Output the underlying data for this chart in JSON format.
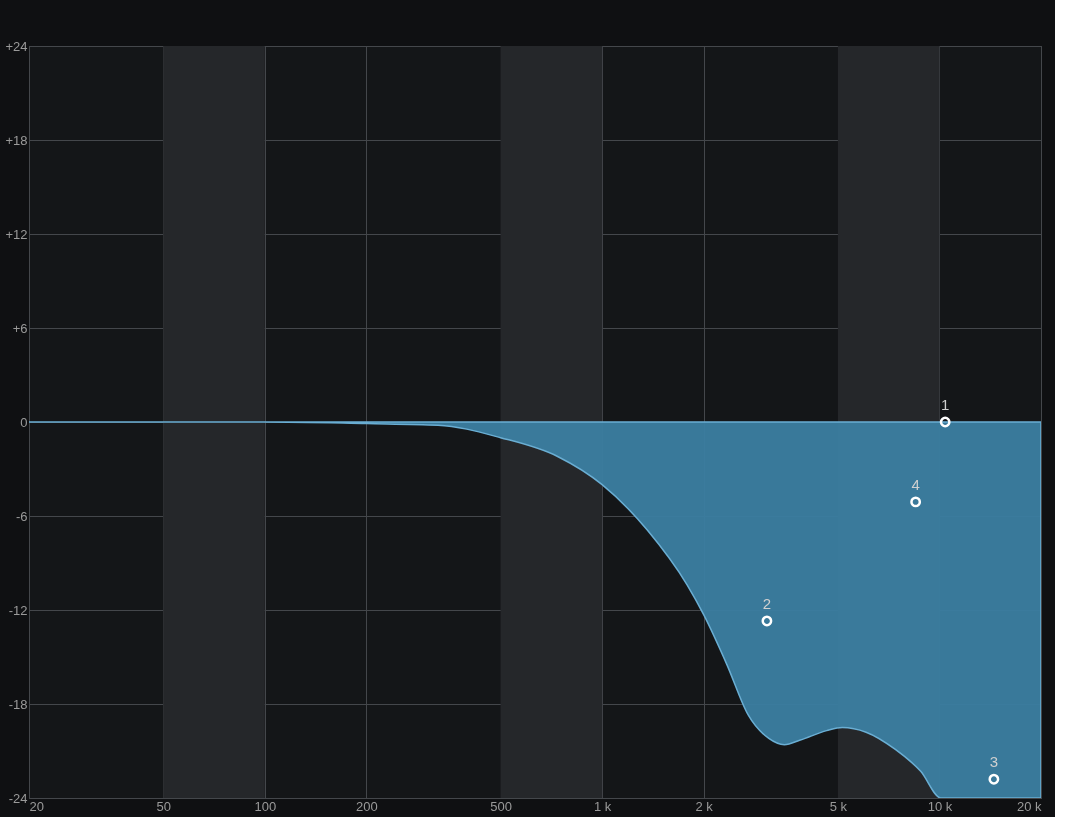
{
  "chart_data": {
    "type": "area",
    "series": [
      {
        "color": "#3b7ea1",
        "x": [
          20,
          100,
          200,
          326,
          500,
          738,
          1000,
          1361,
          1786,
          2000,
          2345,
          2710,
          3120,
          3470,
          3870,
          4630,
          5150,
          6060,
          7400,
          8800,
          10100,
          20000
        ],
        "values": [
          0,
          0,
          -0.1,
          -0.2,
          -1.0,
          -2.2,
          -4.0,
          -6.9,
          -10.4,
          -12.3,
          -15.5,
          -18.7,
          -20.2,
          -20.6,
          -20.3,
          -19.7,
          -19.5,
          -19.8,
          -20.9,
          -22.3,
          -24,
          -24
        ]
      },
      {
        "type": "scatter",
        "marker": "circle",
        "color": "#ffffff",
        "x": [
          10400,
          3080,
          14500,
          8500
        ],
        "values": [
          0,
          -12.7,
          -22.8,
          -5.1
        ]
      }
    ],
    "annotations": [
      {
        "text": "1",
        "x": 10400,
        "y": 0
      },
      {
        "text": "2",
        "x": 3080,
        "y": -12.7
      },
      {
        "text": "3",
        "x": 14500,
        "y": -22.8
      },
      {
        "text": "4",
        "x": 8500,
        "y": -5.1
      }
    ],
    "bands": [
      {
        "axis": "x",
        "from": 50,
        "to": 100,
        "color": "#25272a"
      },
      {
        "axis": "x",
        "from": 500,
        "to": 1000,
        "color": "#25272a"
      },
      {
        "axis": "x",
        "from": 5000,
        "to": 10000,
        "color": "#25272a"
      }
    ],
    "log": "x",
    "xlim": [
      20,
      20000
    ],
    "ylim": [
      -24,
      24
    ],
    "xticks": [
      20,
      50,
      100,
      200,
      500,
      {
        "value": 1000,
        "label": "1 k"
      },
      {
        "value": 2000,
        "label": "2 k"
      },
      {
        "value": 5000,
        "label": "5 k"
      },
      {
        "value": 10000,
        "label": "10 k"
      },
      {
        "value": 20000,
        "label": "20 k"
      }
    ],
    "yticks": [
      {
        "value": 24,
        "label": "+24"
      },
      {
        "value": 18,
        "label": "+18"
      },
      {
        "value": 12,
        "label": "+12"
      },
      {
        "value": 6,
        "label": "+6"
      },
      0,
      -6,
      -12,
      -18,
      -24
    ],
    "grid": true
  }
}
